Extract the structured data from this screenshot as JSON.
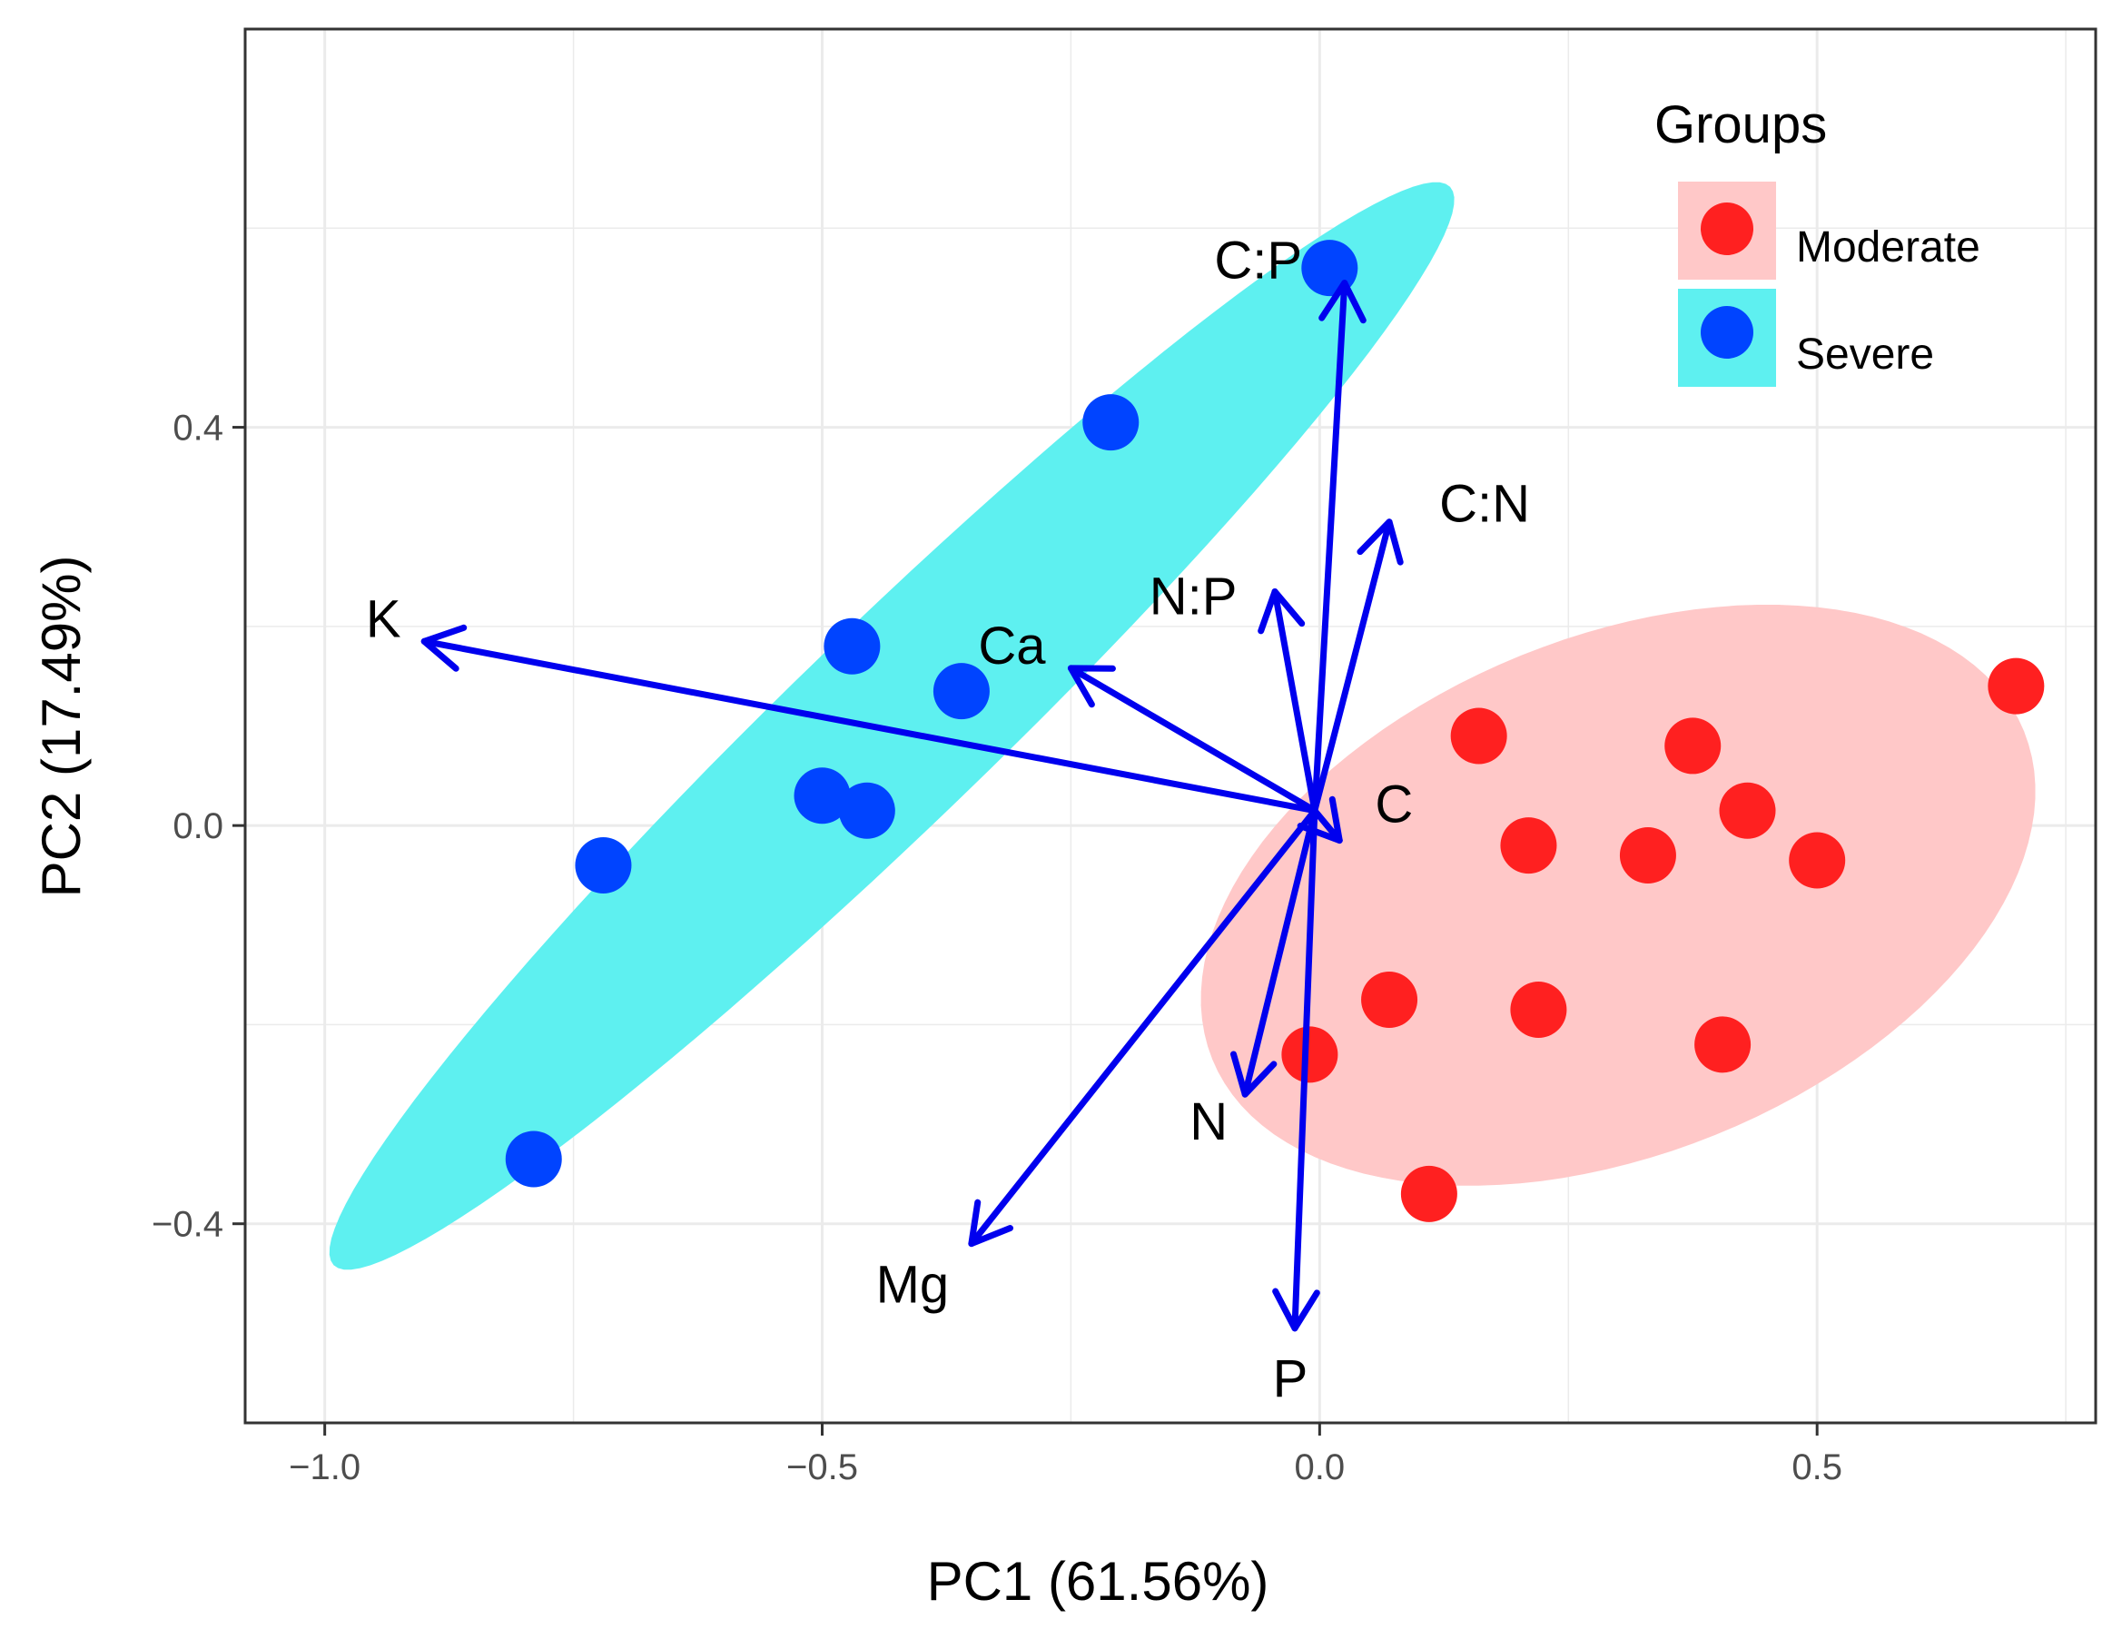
{
  "chart_data": {
    "type": "scatter",
    "subtype": "pca-biplot",
    "xlabel": "PC1 (61.56%)",
    "ylabel": "PC2 (17.49%)",
    "xlim": [
      -1.08,
      0.78
    ],
    "ylim": [
      -0.6,
      0.8
    ],
    "xticks": [
      -1.0,
      -0.5,
      0.0,
      0.5
    ],
    "xtick_labels": [
      "−1.0",
      "−0.5",
      "0.0",
      "0.5"
    ],
    "yticks": [
      -0.4,
      0.0,
      0.4
    ],
    "ytick_labels": [
      "−0.4",
      "0.0",
      "0.4"
    ],
    "grid": true,
    "legend": {
      "title": "Groups",
      "position": "top-right",
      "entries": [
        {
          "label": "Moderate",
          "point_color": "#ff2020",
          "fill_color": "#ffc8c8"
        },
        {
          "label": "Severe",
          "point_color": "#0044ff",
          "fill_color": "#5ef0f0"
        }
      ]
    },
    "series": [
      {
        "name": "Moderate",
        "color": "#ff2020",
        "points": [
          {
            "x": 0.16,
            "y": 0.09
          },
          {
            "x": 0.375,
            "y": 0.08
          },
          {
            "x": 0.7,
            "y": 0.14
          },
          {
            "x": 0.21,
            "y": -0.02
          },
          {
            "x": 0.33,
            "y": -0.03
          },
          {
            "x": 0.43,
            "y": 0.015
          },
          {
            "x": 0.5,
            "y": -0.035
          },
          {
            "x": 0.07,
            "y": -0.175
          },
          {
            "x": 0.22,
            "y": -0.185
          },
          {
            "x": -0.01,
            "y": -0.23
          },
          {
            "x": 0.405,
            "y": -0.22
          },
          {
            "x": 0.11,
            "y": -0.37
          }
        ],
        "ellipse": {
          "cx": 0.3,
          "cy": -0.07,
          "rx": 0.44,
          "ry": 0.26,
          "angle_deg": 22
        }
      },
      {
        "name": "Severe",
        "color": "#0044ff",
        "points": [
          {
            "x": 0.01,
            "y": 0.56
          },
          {
            "x": -0.21,
            "y": 0.405
          },
          {
            "x": -0.47,
            "y": 0.18
          },
          {
            "x": -0.36,
            "y": 0.135
          },
          {
            "x": -0.5,
            "y": 0.03
          },
          {
            "x": -0.455,
            "y": 0.015
          },
          {
            "x": -0.72,
            "y": -0.04
          },
          {
            "x": -0.79,
            "y": -0.335
          }
        ],
        "ellipse": {
          "cx": -0.43,
          "cy": 0.1,
          "rx": 0.78,
          "ry": 0.1,
          "angle_deg": 44
        }
      }
    ],
    "vectors": {
      "origin": {
        "x": -0.005,
        "y": 0.015
      },
      "color": "#0000ee",
      "items": [
        {
          "label": "C:P",
          "x": 0.025,
          "y": 0.545
        },
        {
          "label": "C:N",
          "x": 0.07,
          "y": 0.305
        },
        {
          "label": "N:P",
          "x": -0.045,
          "y": 0.235
        },
        {
          "label": "K",
          "x": -0.9,
          "y": 0.185
        },
        {
          "label": "Ca",
          "x": -0.25,
          "y": 0.158
        },
        {
          "label": "C",
          "x": 0.02,
          "y": -0.015
        },
        {
          "label": "N",
          "x": -0.075,
          "y": -0.27
        },
        {
          "label": "Mg",
          "x": -0.35,
          "y": -0.42
        },
        {
          "label": "P",
          "x": -0.025,
          "y": -0.505
        }
      ]
    }
  }
}
